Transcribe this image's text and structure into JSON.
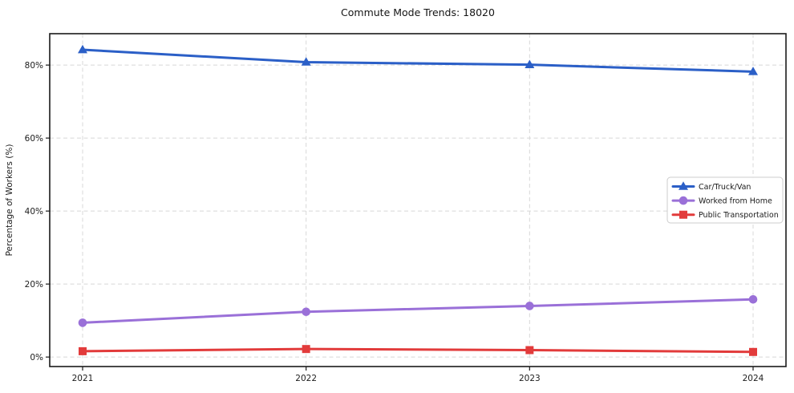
{
  "figure": {
    "background": "#ffffff",
    "spine_color": "#1a1a1a",
    "grid_color": "#d8d8d8",
    "tick_label_color": "#1c1c1c"
  },
  "chart_data": {
    "type": "line",
    "title": "Commute Mode Trends: 18020",
    "xlabel": "",
    "ylabel": "Percentage of Workers (%)",
    "categories": [
      "2021",
      "2022",
      "2023",
      "2024"
    ],
    "series": [
      {
        "name": "Car/Truck/Van",
        "color": "#2b5fc7",
        "marker": "triangle",
        "values": [
          84.2,
          80.8,
          80.1,
          78.2
        ]
      },
      {
        "name": "Worked from Home",
        "color": "#9a70d8",
        "marker": "circle",
        "values": [
          9.4,
          12.4,
          14.0,
          15.8
        ]
      },
      {
        "name": "Public Transportation",
        "color": "#e23b3b",
        "marker": "square",
        "values": [
          1.6,
          2.2,
          1.9,
          1.4
        ]
      }
    ],
    "yticks": [
      {
        "value": 0,
        "label": "0%"
      },
      {
        "value": 20,
        "label": "20%"
      },
      {
        "value": 40,
        "label": "40%"
      },
      {
        "value": 60,
        "label": "60%"
      },
      {
        "value": 80,
        "label": "80%"
      }
    ],
    "ylim": [
      -2.6,
      88.6
    ],
    "grid": true,
    "grid_style": "dashed",
    "legend": {
      "position": "center-right",
      "background": "#ffffff",
      "border_color": "#cccccc"
    }
  }
}
